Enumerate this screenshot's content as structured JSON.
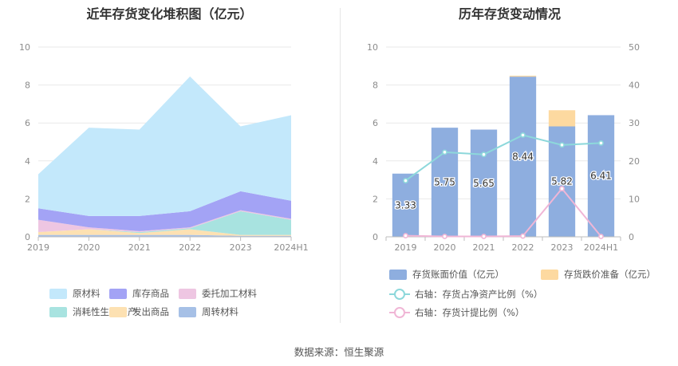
{
  "source": "数据来源：恒生聚源",
  "left_chart": {
    "title": "近年存货变化堆积图（亿元）"
  },
  "right_chart": {
    "title": "历年存货变动情况"
  },
  "colors": {
    "原材料": "#c3e8fb",
    "库存商品": "#a3a3f5",
    "委托加工材料": "#eec6e2",
    "消耗性生物资产": "#a8e3e0",
    "发出商品": "#fde1b2",
    "周转材料": "#a6c0e6",
    "bar_book": "#8eaedf",
    "bar_reserve": "#fdd9a0",
    "line_ratio": "#8dd8db",
    "line_provision": "#f0b6d6"
  },
  "chart_data": [
    {
      "type": "area",
      "title": "近年存货变化堆积图（亿元）",
      "stacked": true,
      "categories": [
        "2019",
        "2020",
        "2021",
        "2022",
        "2023",
        "2024H1"
      ],
      "ylim": [
        0,
        10
      ],
      "yticks": [
        0,
        2,
        4,
        6,
        8,
        10
      ],
      "grid": true,
      "legend_position": "bottom",
      "series": [
        {
          "name": "周转材料",
          "values": [
            0.1,
            0.1,
            0.1,
            0.1,
            0.05,
            0.05
          ]
        },
        {
          "name": "发出商品",
          "values": [
            0.15,
            0.3,
            0.1,
            0.3,
            0.05,
            0.05
          ]
        },
        {
          "name": "消耗性生物资产",
          "values": [
            0.0,
            0.0,
            0.05,
            0.05,
            1.25,
            0.8
          ]
        },
        {
          "name": "委托加工材料",
          "values": [
            0.65,
            0.1,
            0.05,
            0.05,
            0.05,
            0.05
          ]
        },
        {
          "name": "库存商品",
          "values": [
            0.6,
            0.6,
            0.8,
            0.85,
            1.0,
            0.95
          ]
        },
        {
          "name": "原材料",
          "values": [
            1.8,
            4.65,
            4.55,
            7.1,
            3.42,
            4.51
          ]
        }
      ],
      "legend": [
        "原材料",
        "库存商品",
        "委托加工材料",
        "消耗性生物资产",
        "发出商品",
        "周转材料"
      ]
    },
    {
      "type": "bar",
      "title": "历年存货变动情况",
      "stacked": true,
      "categories": [
        "2019",
        "2020",
        "2021",
        "2022",
        "2023",
        "2024H1"
      ],
      "ylim": [
        0,
        10
      ],
      "yticks": [
        0,
        2,
        4,
        6,
        8,
        10
      ],
      "y2lim": [
        0,
        50
      ],
      "y2ticks": [
        0,
        10,
        20,
        30,
        40,
        50
      ],
      "grid": true,
      "legend_position": "bottom",
      "series": [
        {
          "name": "存货账面价值（亿元）",
          "axis": "left",
          "kind": "bar",
          "values": [
            3.33,
            5.75,
            5.65,
            8.44,
            5.82,
            6.41
          ],
          "labels": [
            "3.33",
            "5.75",
            "5.65",
            "8.44",
            "5.82",
            "6.41"
          ]
        },
        {
          "name": "存货跌价准备（亿元）",
          "axis": "left",
          "kind": "bar",
          "values": [
            0.0,
            0.0,
            0.0,
            0.05,
            0.85,
            0.0
          ]
        },
        {
          "name": "右轴：存货占净资产比例（%）",
          "axis": "right",
          "kind": "line",
          "values": [
            14.8,
            22.3,
            21.7,
            26.8,
            24.2,
            24.7
          ]
        },
        {
          "name": "右轴：存货计提比例（%）",
          "axis": "right",
          "kind": "line",
          "values": [
            0.3,
            0.1,
            0.1,
            0.2,
            12.7,
            0.1
          ]
        }
      ]
    }
  ]
}
